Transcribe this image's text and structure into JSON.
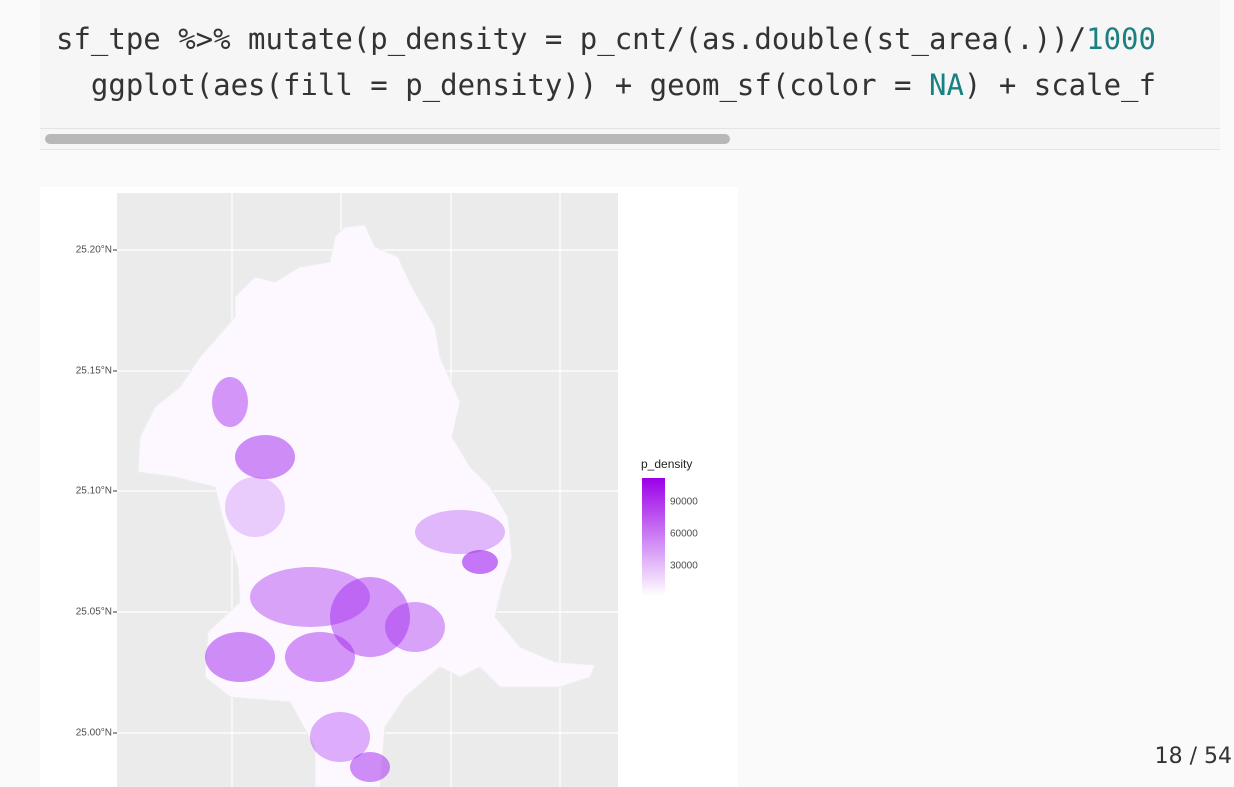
{
  "code": {
    "lines": [
      [
        "sf_tpe %>% mutate(p_density = p_cnt/(as.double(st_area(.))/",
        "1000"
      ],
      [
        "  ggplot(aes(fill = p_density)) + geom_sf(color = ",
        "NA",
        ") + scale_f"
      ]
    ]
  },
  "plot": {
    "y_labels": [
      "25.20°N",
      "25.15°N",
      "25.10°N",
      "25.05°N",
      "25.00°N"
    ],
    "legend": {
      "title": "p_density",
      "labels": [
        "90000",
        "60000",
        "30000"
      ]
    }
  },
  "slide_number": "18 / 54"
}
